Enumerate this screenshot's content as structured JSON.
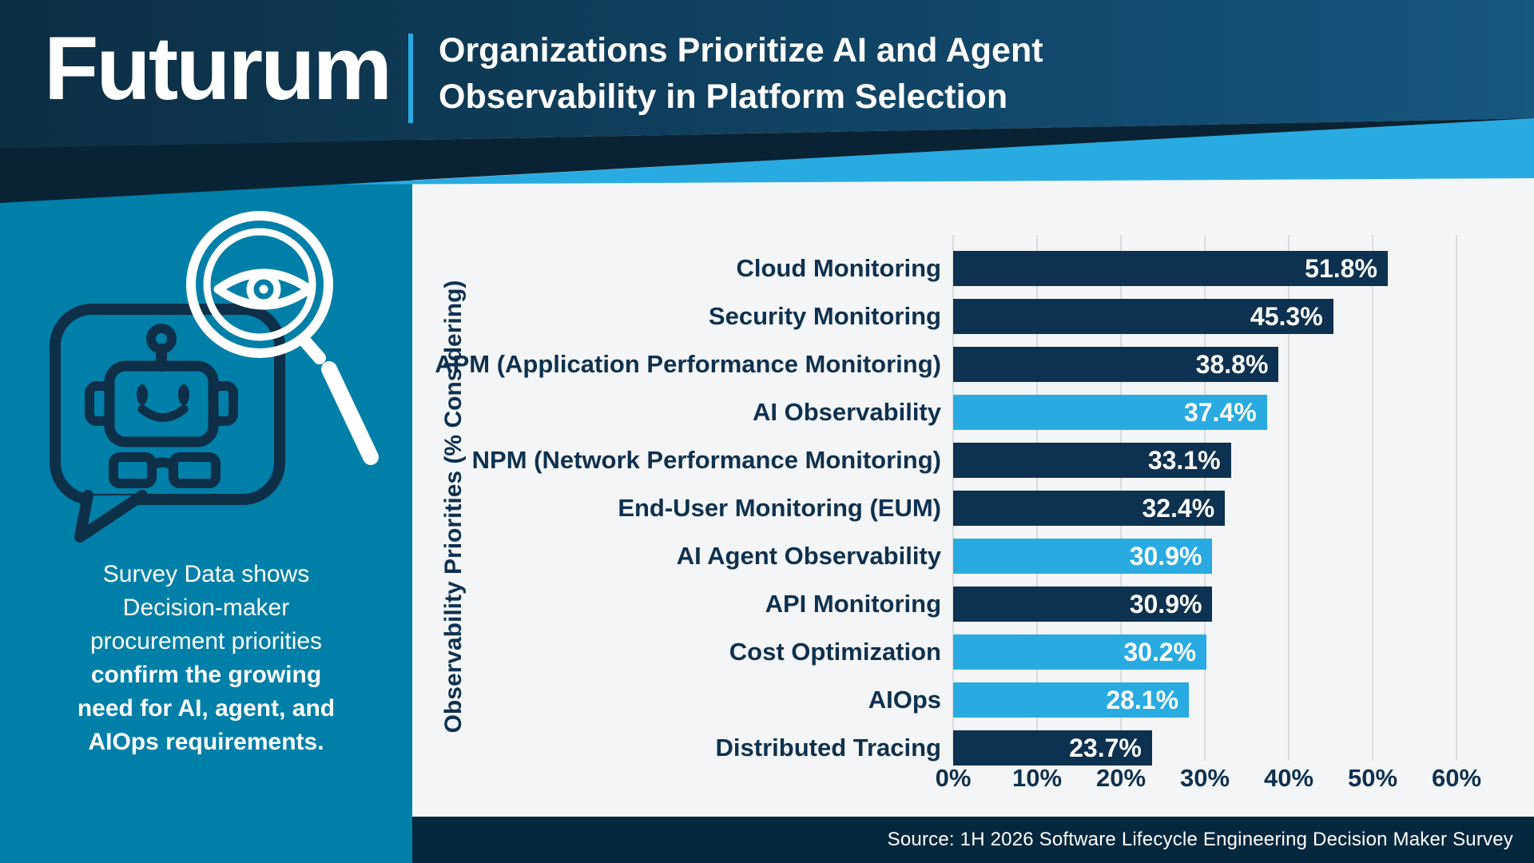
{
  "brand": {
    "logo_text": "Futurum"
  },
  "header": {
    "title_line1": "Organizations Prioritize AI and Agent",
    "title_line2": "Observability in Platform Selection"
  },
  "sidebar": {
    "illustration_icons": [
      "robot-chat-bubble-icon",
      "magnifier-eye-icon"
    ],
    "caption": {
      "lines": [
        {
          "text": "Survey Data shows",
          "bold": false
        },
        {
          "text": "Decision-maker",
          "bold": false
        },
        {
          "text": "procurement priorities",
          "bold": false
        },
        {
          "text": "confirm the growing",
          "bold": true
        },
        {
          "text": "need for AI, agent, and",
          "bold": true
        },
        {
          "text": "AIOps requirements.",
          "bold": true
        }
      ]
    }
  },
  "chart_data": {
    "type": "bar",
    "orientation": "horizontal",
    "title": "Organizations Prioritize AI and Agent Observability in Platform Selection",
    "ylabel": "Observability Priorities (% Considering)",
    "xlabel": "",
    "xlim": [
      0,
      60
    ],
    "grid": true,
    "x_ticks": [
      {
        "value": 0,
        "label": "0%"
      },
      {
        "value": 10,
        "label": "10%"
      },
      {
        "value": 20,
        "label": "20%"
      },
      {
        "value": 30,
        "label": "30%"
      },
      {
        "value": 40,
        "label": "40%"
      },
      {
        "value": 50,
        "label": "50%"
      },
      {
        "value": 60,
        "label": "60%"
      }
    ],
    "rows": [
      {
        "category": "Cloud Monitoring",
        "value": 51.8,
        "label": "51.8%",
        "highlight": false
      },
      {
        "category": "Security Monitoring",
        "value": 45.3,
        "label": "45.3%",
        "highlight": false
      },
      {
        "category": "APM (Application Performance Monitoring)",
        "value": 38.8,
        "label": "38.8%",
        "highlight": false
      },
      {
        "category": "AI Observability",
        "value": 37.4,
        "label": "37.4%",
        "highlight": true
      },
      {
        "category": "NPM (Network Performance Monitoring)",
        "value": 33.1,
        "label": "33.1%",
        "highlight": false
      },
      {
        "category": "End-User Monitoring (EUM)",
        "value": 32.4,
        "label": "32.4%",
        "highlight": false
      },
      {
        "category": "AI Agent Observability",
        "value": 30.9,
        "label": "30.9%",
        "highlight": true
      },
      {
        "category": "API Monitoring",
        "value": 30.9,
        "label": "30.9%",
        "highlight": false
      },
      {
        "category": "Cost Optimization",
        "value": 30.2,
        "label": "30.2%",
        "highlight": true
      },
      {
        "category": "AIOps",
        "value": 28.1,
        "label": "28.1%",
        "highlight": true
      },
      {
        "category": "Distributed Tracing",
        "value": 23.7,
        "label": "23.7%",
        "highlight": false
      }
    ]
  },
  "footer": {
    "source": "Source: 1H 2026 Software Lifecycle Engineering Decision Maker Survey"
  },
  "colors": {
    "navy_bar": "#0d3150",
    "accent_blue": "#29abe2",
    "teal_sidebar": "#007fa9",
    "chart_background": "#f4f5f6",
    "gridline": "#d8dcdf",
    "header_navy_left": "#0c2e43",
    "header_navy_right": "#16567f",
    "dark_wedge": "#0a2334",
    "source_bar": "#05283e",
    "text_white": "#ffffff",
    "text_navy": "#0d3150"
  }
}
